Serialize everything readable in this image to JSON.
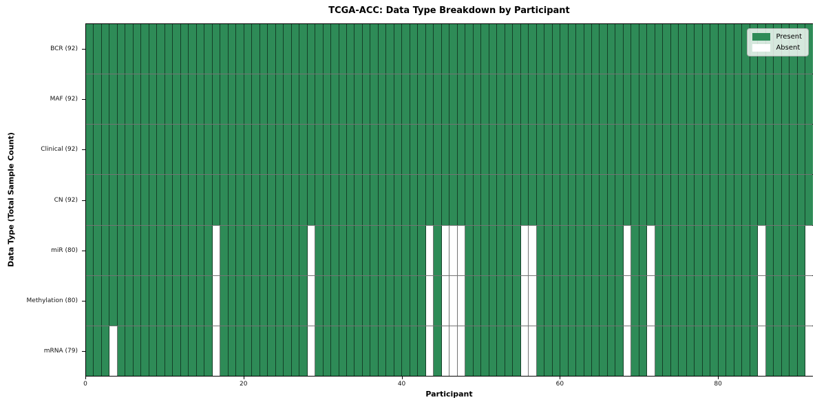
{
  "title": "TCGA-ACC: Data Type Breakdown by Participant",
  "chart_data": {
    "type": "heatmap",
    "title": "TCGA-ACC: Data Type Breakdown by Participant",
    "xlabel": "Participant",
    "ylabel": "Data Type (Total Sample Count)",
    "n_participants": 92,
    "x_ticks": [
      0,
      20,
      40,
      60,
      80
    ],
    "colors": {
      "present": "#2E8B57",
      "absent": "#FFFFFF",
      "grid_line": "rgba(0,0,0,0.55)",
      "spine": "#000000"
    },
    "legend": [
      {
        "label": "Present",
        "color": "#2E8B57"
      },
      {
        "label": "Absent",
        "color": "#FFFFFF"
      }
    ],
    "legend_position": "upper right",
    "rows": [
      {
        "label": "BCR (92)",
        "present_count": 92,
        "absent_participants": []
      },
      {
        "label": "MAF (92)",
        "present_count": 92,
        "absent_participants": []
      },
      {
        "label": "Clinical (92)",
        "present_count": 92,
        "absent_participants": []
      },
      {
        "label": "CN (92)",
        "present_count": 92,
        "absent_participants": []
      },
      {
        "label": "miR (80)",
        "present_count": 80,
        "absent_participants": [
          16,
          28,
          43,
          45,
          46,
          47,
          55,
          56,
          68,
          71,
          85,
          91
        ]
      },
      {
        "label": "Methylation (80)",
        "present_count": 80,
        "absent_participants": [
          16,
          28,
          43,
          45,
          46,
          47,
          55,
          56,
          68,
          71,
          85,
          91
        ]
      },
      {
        "label": "mRNA (79)",
        "present_count": 79,
        "absent_participants": [
          3,
          16,
          28,
          43,
          45,
          46,
          47,
          55,
          56,
          68,
          71,
          85,
          91
        ]
      }
    ]
  }
}
